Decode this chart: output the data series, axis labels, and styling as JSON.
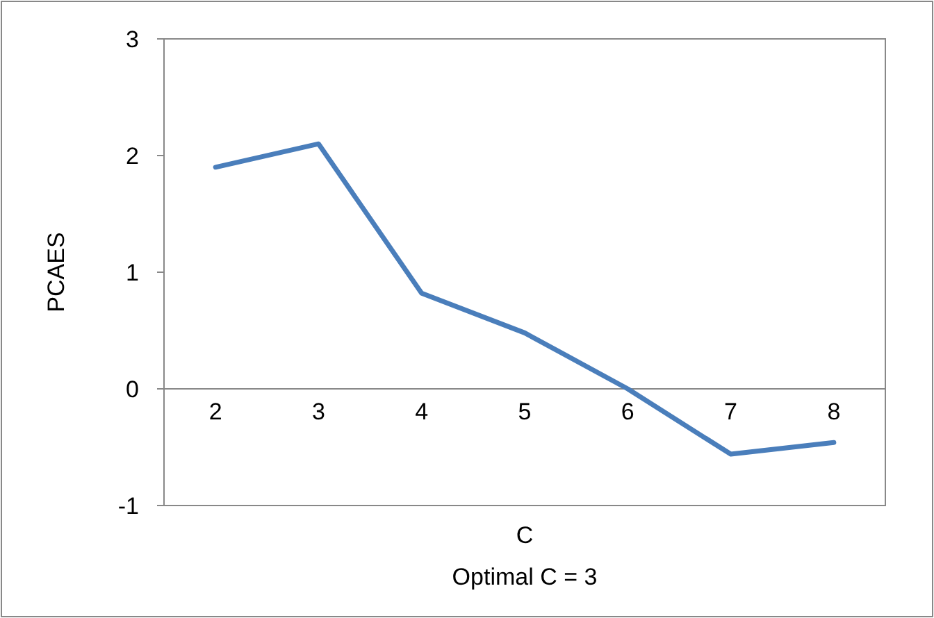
{
  "chart_data": {
    "type": "line",
    "xlabel": "C",
    "ylabel": "PCAES",
    "annotations": [
      "Optimal C = 3"
    ],
    "categories": [
      "2",
      "3",
      "4",
      "5",
      "6",
      "7",
      "8"
    ],
    "series": [
      {
        "color": "#4a7ebb",
        "values": [
          1.9,
          2.1,
          0.82,
          0.48,
          0.0,
          -0.56,
          -0.46
        ]
      }
    ],
    "ylim": [
      -1,
      3
    ],
    "yticks": [
      -1,
      0,
      1,
      2,
      3
    ],
    "grid": false,
    "marker": "none",
    "line_style": "solid"
  }
}
